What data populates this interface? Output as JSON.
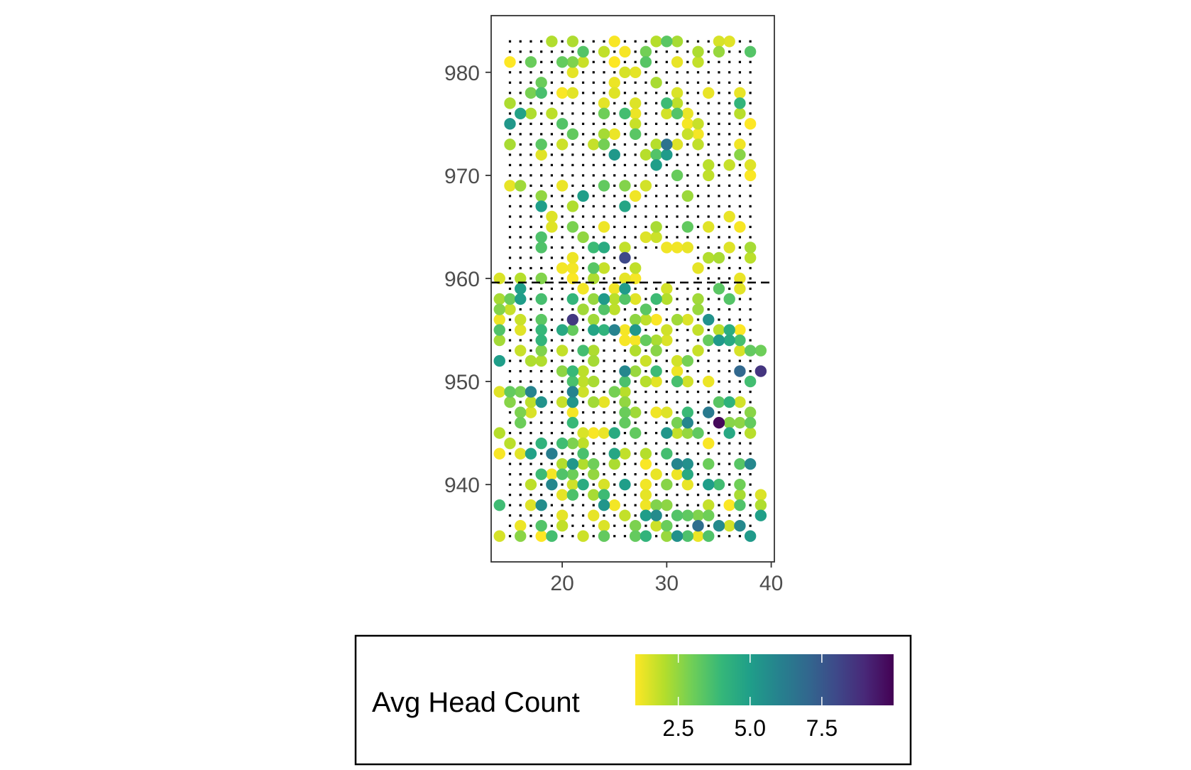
{
  "chart_data": {
    "type": "scatter",
    "title": "",
    "xlabel": "",
    "ylabel": "",
    "xlim": [
      13.2,
      40.3
    ],
    "ylim": [
      932.5,
      985.5
    ],
    "x_ticks": [
      20,
      30,
      40
    ],
    "y_ticks": [
      940,
      950,
      960,
      970,
      980
    ],
    "x_tick_labels": [
      "20",
      "30",
      "40"
    ],
    "y_tick_labels": [
      "940",
      "950",
      "960",
      "970",
      "980"
    ],
    "reference_line": {
      "style": "dashed",
      "y": 959.6,
      "color": "#000000"
    },
    "grid_points": {
      "x_range": [
        15,
        38
      ],
      "x_step": 1,
      "y_range": [
        935,
        983
      ],
      "y_step": 1,
      "excluded_region": {
        "x": [
          27.5,
          32.5
        ],
        "y": [
          959.5,
          962.5
        ]
      },
      "color": "#000000"
    },
    "legend": {
      "title": "Avg Head Count",
      "position": "bottom",
      "range": [
        1,
        10
      ],
      "ticks": [
        2.5,
        5.0,
        7.5
      ],
      "tick_labels": [
        "2.5",
        "5.0",
        "7.5"
      ],
      "colormap": "viridis-reversed",
      "colors": [
        "#fde725",
        "#b5de2b",
        "#6ece58",
        "#35b779",
        "#1f9e89",
        "#26828e",
        "#31688e",
        "#3e4989",
        "#482878",
        "#440154"
      ]
    },
    "series": [
      {
        "name": "Avg Head Count",
        "seed": 4517,
        "highlight_points": [
          {
            "x": 26,
            "y": 962,
            "value": 8.0
          },
          {
            "x": 21,
            "y": 956,
            "value": 8.5
          },
          {
            "x": 35,
            "y": 946,
            "value": 9.8
          },
          {
            "x": 39,
            "y": 951,
            "value": 8.6
          },
          {
            "x": 37,
            "y": 951,
            "value": 7.0
          },
          {
            "x": 30,
            "y": 973,
            "value": 6.6
          },
          {
            "x": 33,
            "y": 936,
            "value": 6.8
          },
          {
            "x": 19,
            "y": 943,
            "value": 6.2
          },
          {
            "x": 25,
            "y": 955,
            "value": 6.0
          },
          {
            "x": 34,
            "y": 947,
            "value": 6.3
          }
        ],
        "points": [
          {
            "x": 15,
            "y": 981,
            "value": 1.0
          },
          {
            "x": 21,
            "y": 983,
            "value": 2.1
          },
          {
            "x": 29,
            "y": 983,
            "value": 2.0
          },
          {
            "x": 31,
            "y": 983,
            "value": 2.2
          },
          {
            "x": 36,
            "y": 983,
            "value": 1.4
          },
          {
            "x": 26,
            "y": 982,
            "value": 1.1
          },
          {
            "x": 25,
            "y": 981,
            "value": 1.0
          },
          {
            "x": 28,
            "y": 981,
            "value": 3.4
          },
          {
            "x": 38,
            "y": 975,
            "value": 1.0
          },
          {
            "x": 31,
            "y": 976,
            "value": 3.5
          },
          {
            "x": 24,
            "y": 976,
            "value": 3.0
          },
          {
            "x": 25,
            "y": 972,
            "value": 5.2
          },
          {
            "x": 29,
            "y": 971,
            "value": 5.0
          },
          {
            "x": 22,
            "y": 968,
            "value": 5.0
          },
          {
            "x": 24,
            "y": 963,
            "value": 4.5
          },
          {
            "x": 23,
            "y": 961,
            "value": 3.4
          },
          {
            "x": 16,
            "y": 960,
            "value": 2.0
          },
          {
            "x": 14,
            "y": 960,
            "value": 1.5
          },
          {
            "x": 18,
            "y": 955,
            "value": 4.0
          },
          {
            "x": 20,
            "y": 953,
            "value": 1.8
          },
          {
            "x": 18,
            "y": 944,
            "value": 4.2
          },
          {
            "x": 20,
            "y": 944,
            "value": 3.8
          },
          {
            "x": 26,
            "y": 940,
            "value": 5.0
          },
          {
            "x": 32,
            "y": 942,
            "value": 5.5
          },
          {
            "x": 30,
            "y": 945,
            "value": 5.3
          },
          {
            "x": 36,
            "y": 945,
            "value": 4.6
          },
          {
            "x": 34,
            "y": 940,
            "value": 5.0
          },
          {
            "x": 24,
            "y": 935,
            "value": 3.2
          },
          {
            "x": 18,
            "y": 935,
            "value": 1.0
          },
          {
            "x": 30,
            "y": 935,
            "value": 2.4
          }
        ]
      }
    ]
  }
}
